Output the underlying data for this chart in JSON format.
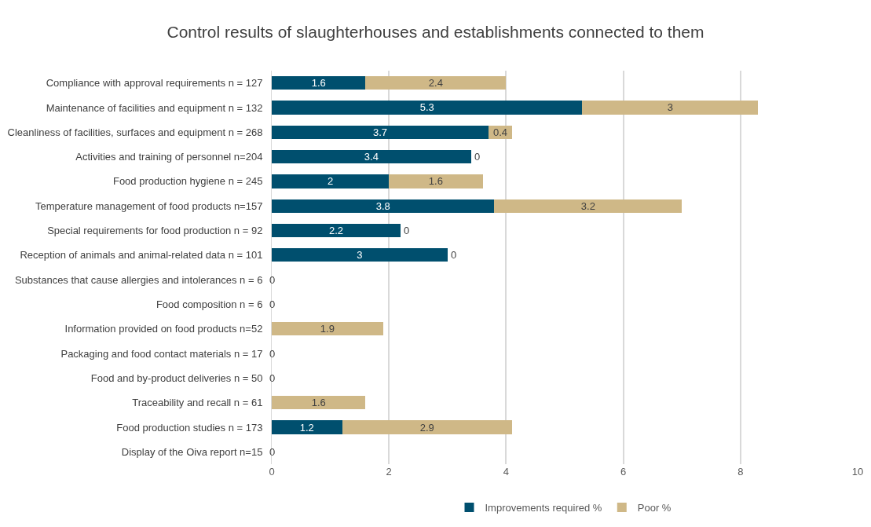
{
  "chart_data": {
    "type": "bar",
    "orientation": "horizontal",
    "stacked": true,
    "title": "Control results of slaughterhouses and establishments connected to them",
    "categories": [
      "Compliance with approval requirements n = 127",
      "Maintenance of facilities and equipment n = 132",
      "Cleanliness of facilities, surfaces and equipment n = 268",
      "Activities and training of personnel n=204",
      "Food production hygiene n = 245",
      "Temperature management of food products n=157",
      "Special requirements for food production n = 92",
      "Reception of animals and animal-related data n = 101",
      "Substances that cause allergies and intolerances n = 6",
      "Food composition n = 6",
      "Information provided on food products n=52",
      "Packaging and food contact materials n = 17",
      "Food and by-product deliveries n = 50",
      "Traceability and recall n = 61",
      "Food production studies n = 173",
      "Display of the Oiva report n=15"
    ],
    "series": [
      {
        "name": "Improvements required %",
        "color": "#004f6e",
        "values": [
          1.6,
          5.3,
          3.7,
          3.4,
          2,
          3.8,
          2.2,
          3,
          0,
          0,
          0,
          0,
          0,
          0,
          1.2,
          0
        ],
        "value_labels": [
          "1.6",
          "5.3",
          "3.7",
          "3.4",
          "2",
          "3.8",
          "2.2",
          "3",
          "0",
          "0",
          null,
          "0",
          "0",
          null,
          "1.2",
          "0"
        ]
      },
      {
        "name": "Poor %",
        "color": "#cfb887",
        "values": [
          2.4,
          3,
          0.4,
          0,
          1.6,
          3.2,
          0,
          0,
          0,
          0,
          1.9,
          0,
          0,
          1.6,
          2.9,
          0
        ],
        "value_labels": [
          "2.4",
          "3",
          "0.4",
          "0",
          "1.6",
          "3.2",
          "0",
          "0",
          null,
          null,
          "1.9",
          null,
          null,
          "1.6",
          "2.9",
          null
        ]
      }
    ],
    "xlim": [
      0,
      10
    ],
    "xticks": [
      0,
      2,
      4,
      6,
      8,
      10
    ],
    "grid": "x",
    "legend": "bottom"
  }
}
